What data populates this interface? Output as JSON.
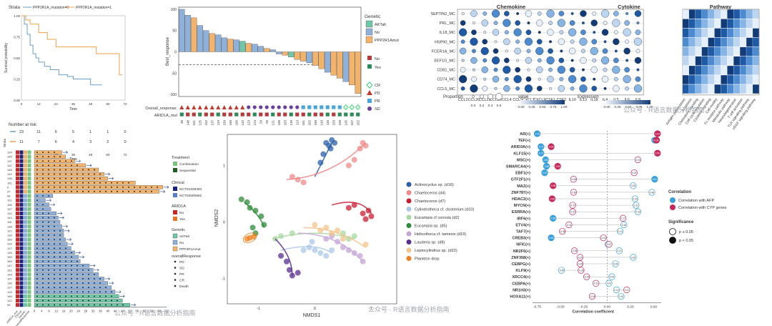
{
  "colors": {
    "survival_w": "#6a9fc5",
    "survival_m": "#f0a04b",
    "ak": "#6fc7a8",
    "no": "#8fb0d8",
    "ppp": "#f2b36c",
    "pd": "#c0392b",
    "sd": "#6a3fa0",
    "pr": "#4aa6d8",
    "cr": "#2ecc71",
    "arid_no": "#b33b3b",
    "arid_yes": "#2e8b57",
    "chem": "#1f5aa6",
    "afp": "#3aa0dc",
    "cyp": "#c7285a"
  },
  "km": {
    "strata_label": "Strata",
    "legend": [
      "PPP2R1A_mutation=0",
      "PPP2R1A_mutation=1"
    ],
    "ylabel": "Survival probability",
    "xlabel": "Time",
    "yticks": [
      "1.00",
      "0.75",
      "0.50",
      "0.25",
      "0.00"
    ],
    "xticks": [
      "0",
      "12",
      "24",
      "36",
      "48",
      "60",
      "72"
    ],
    "risk_title": "Number at risk",
    "risk_rows": [
      [
        "23",
        "11",
        "6",
        "5",
        "1",
        "1",
        "0"
      ],
      [
        "11",
        "7",
        "6",
        "4",
        "3",
        "2",
        "0"
      ]
    ],
    "risk_xlabel": "Time",
    "strata_side": "Strata"
  },
  "waterfall": {
    "ylabel": "Best_response",
    "yticks": [
      "100",
      "50",
      "0",
      "-50",
      "-100"
    ],
    "legend_title": "Genetic",
    "legend": [
      "AKTalt",
      "No",
      "PPP2R1Amut"
    ],
    "arid_legend": [
      "No",
      "Yes"
    ],
    "resp_legend": [
      "CR",
      "PD",
      "PR",
      "SD"
    ],
    "row_labels": [
      "Overall_response:",
      "ARID1A_mut"
    ],
    "sample_ids": [
      "36",
      "148",
      "151",
      "125",
      "152",
      "137",
      "119",
      "150",
      "160",
      "166",
      "142",
      "123",
      "124",
      "29",
      "26",
      "121",
      "168",
      "163",
      "139",
      "113",
      "161",
      "162",
      "160",
      "143",
      "116",
      "159",
      "158",
      "145",
      "157",
      "152"
    ],
    "values": [
      100,
      86,
      80,
      62,
      50,
      43,
      40,
      33,
      30,
      28,
      25,
      20,
      18,
      13,
      8,
      5,
      -5,
      -8,
      -12,
      -18,
      -22,
      -26,
      -32,
      -40,
      -48,
      -55,
      -62,
      -70,
      -78,
      -98
    ]
  },
  "heatmap": {
    "sections": [
      "Chemokine",
      "Cytokine",
      "Pathway"
    ],
    "rows": [
      "SEPTIN2_MC",
      "PRL_MC",
      "IL18_MC",
      "HSP90_MC",
      "FCER1A_MC",
      "EEF1G_MC",
      "CD81_MC",
      "CD74_MC",
      "CCL5_MC"
    ],
    "chemokines": [
      "CCL2",
      "CCL20",
      "CCL23",
      "CCL28",
      "CCL4",
      "CCL5",
      "CXCL2",
      "CXCL9",
      "CSF1"
    ],
    "cytokines": [
      "CSF2",
      "IL10",
      "IL13",
      "IL18",
      "IL4",
      "IL5",
      "IL6",
      "IL8"
    ],
    "pathways": [
      "Antigen presentation",
      "Apoptosis",
      "Chemokine signaling",
      "Cell cycle regulation",
      "Cytokine signaling",
      "Cell motility",
      "Fc receptor pathway",
      "Metabolic pathway",
      "Neurodegeneration",
      "T cell activation",
      "TLR signaling pathway",
      "VEGF signaling pathway"
    ],
    "prop_label": "Proportion",
    "prop_ticks": [
      "0.0",
      "0.2",
      "0.4",
      "0.6"
    ],
    "value_label": "value",
    "value_ticks": [
      "0.00",
      "0.25",
      "0.50",
      "0.75",
      "1.00"
    ],
    "expr_label": "Expression",
    "expr_ticks": [
      "0.00",
      "0.25",
      "0.50",
      "0.75",
      "1.00"
    ]
  },
  "swimmer": {
    "ids": [
      "124",
      "145",
      "137",
      "110",
      "148",
      "142",
      "135",
      "161",
      "0",
      "27",
      "98",
      "113",
      "156",
      "157",
      "114",
      "144",
      "115",
      "138",
      "121",
      "130",
      "165",
      "126",
      "127",
      "135",
      "159",
      "160",
      "147",
      "152",
      "163",
      "107",
      "136",
      "127",
      "128",
      "166",
      "122",
      "99"
    ],
    "values": [
      15,
      17,
      22,
      28,
      35,
      38,
      40,
      55,
      70,
      68,
      10,
      6,
      8,
      9,
      12,
      13,
      14,
      15,
      16,
      16,
      17,
      18,
      20,
      22,
      24,
      25,
      30,
      32,
      35,
      38,
      40,
      42,
      44,
      46,
      48,
      52
    ],
    "genetic": [
      2,
      2,
      2,
      2,
      2,
      2,
      2,
      2,
      2,
      2,
      1,
      1,
      1,
      1,
      1,
      1,
      1,
      1,
      1,
      1,
      1,
      1,
      1,
      1,
      1,
      1,
      1,
      1,
      1,
      1,
      1,
      1,
      1,
      0,
      0,
      0
    ],
    "xticks": [
      "0",
      "4",
      "8",
      "12",
      "16",
      "20",
      "24",
      "28",
      "32",
      "36",
      "40",
      "44",
      "48",
      "52",
      "56",
      "60",
      "64",
      "68",
      "72"
    ],
    "col_labels": [
      "ARID1A_mut",
      "Clinical",
      "Genetic",
      "overallResponse"
    ],
    "treatment_title": "Treatment",
    "treatment": [
      "Combination",
      "Sequential"
    ],
    "clinical_title": "Clinical",
    "clinical": [
      "NCT01928394",
      "NCT02600862"
    ],
    "arid_title": "ARID1A",
    "arid": [
      "No",
      "Yes"
    ],
    "genetic_title": "Genetic",
    "genetic_legend": [
      "AKTalt",
      "No",
      "PPP2R1Amut"
    ],
    "resp_title": "overallResponse",
    "resp": [
      "PD",
      "SD",
      "PR",
      "CR",
      "Death"
    ]
  },
  "nmds": {
    "xlabel": "NMDS1",
    "ylabel": "NMDS2",
    "xticks": [
      "-1",
      "0",
      "1"
    ],
    "yticks": [
      "1",
      "0",
      "-1"
    ],
    "legend": [
      {
        "name": "Actinocyclus sp. (d16)",
        "color": "#2b5fa8"
      },
      {
        "name": "Chaetoceros (d4)",
        "color": "#f08a8a"
      },
      {
        "name": "Chaetoceros (d7)",
        "color": "#c81e32"
      },
      {
        "name": "Cylindrotheca cf. closterium (d10)",
        "color": "#a9c8e8"
      },
      {
        "name": "Eucampia cf cornuta (d2)",
        "color": "#a8d8a0"
      },
      {
        "name": "Eucampia sp. (d5)",
        "color": "#2e8b3a"
      },
      {
        "name": "Helicotheca cf. tamesis (d19)",
        "color": "#c4a6d6"
      },
      {
        "name": "Lauderia sp. (d8)",
        "color": "#5a2d91"
      },
      {
        "name": "Leptocylindrus sp. (d22)",
        "color": "#f3c38a"
      },
      {
        "name": "Plankton drop",
        "color": "#f07f1e"
      }
    ]
  },
  "corr": {
    "genes": [
      "AR(+)",
      "TEF(+)",
      "ARID3A(+)",
      "KLF15(+)",
      "MSC(+)",
      "SMARCA4(+)",
      "EBF1(+)",
      "GTF2F1(+)",
      "MAZ(+)",
      "ZNF787(+)",
      "HDAC2(+)",
      "MYCN(+)",
      "ESRRA(+)",
      "IRF6(+)",
      "ETV4(+)",
      "TAF7(+)",
      "CREB3(+)",
      "NFIC(+)",
      "NR2F6(+)",
      "ZNF358(+)",
      "CEBPG(+)",
      "KLF9(+)",
      "XRCC4(+)",
      "CEBPA(+)",
      "NR1H3(+)",
      "HOXA11(+)"
    ],
    "afp": [
      -0.75,
      0.51,
      -0.71,
      -0.71,
      -0.66,
      -0.65,
      -0.67,
      0.51,
      0.28,
      0.48,
      0.3,
      0.31,
      0.33,
      -0.58,
      0.18,
      0.14,
      -0.6,
      0.01,
      0.13,
      0.28,
      0.09,
      -0.49,
      0.05,
      0.02,
      0.1,
      0.15
    ],
    "cyp": [
      0.54,
      0.53,
      -0.6,
      0.54,
      0.33,
      -0.53,
      0.29,
      -0.36,
      -0.58,
      -0.36,
      -0.59,
      -0.37,
      -0.37,
      0.17,
      -0.41,
      -0.48,
      -0.04,
      0.02,
      -0.35,
      -0.29,
      -0.29,
      -0.28,
      -0.22,
      -0.12,
      0.21,
      -0.16
    ],
    "sig_afp": [
      1,
      1,
      1,
      1,
      1,
      1,
      1,
      1,
      0,
      0,
      0,
      0,
      0,
      1,
      0,
      0,
      1,
      0,
      0,
      0,
      0,
      0,
      0,
      0,
      0,
      0
    ],
    "sig_cyp": [
      1,
      1,
      1,
      1,
      0,
      1,
      0,
      0,
      1,
      0,
      1,
      0,
      0,
      0,
      0,
      0,
      0,
      0,
      0,
      0,
      0,
      0,
      0,
      0,
      0,
      0
    ],
    "xlabel": "Correlation coefficient",
    "xticks": [
      "-0.75",
      "-0.50",
      "-0.25",
      "0.00",
      "0.25",
      "0.50"
    ],
    "legend_title": "Correlation",
    "legend": [
      "Correlation with AFP",
      "Correlation with CYP genes"
    ],
    "sig_title": "Significance",
    "sig": [
      "p ≥ 0.05",
      "p < 0.05"
    ]
  },
  "watermark": "公众号 · R语言数据分析指南"
}
